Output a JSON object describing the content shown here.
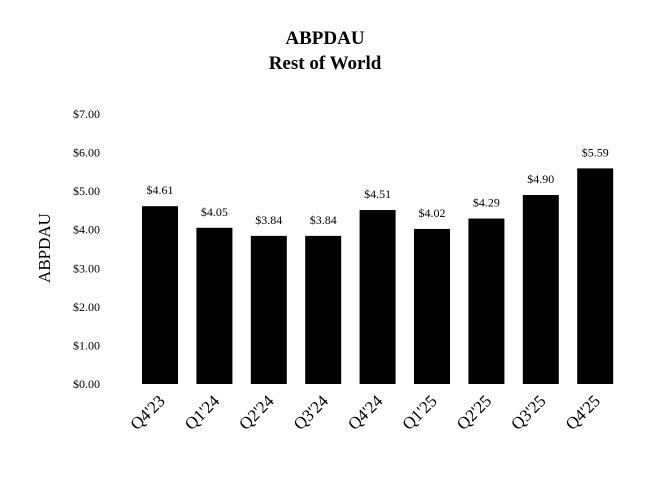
{
  "chart_data": {
    "type": "bar",
    "title": "ABPDAU",
    "subtitle": "Rest of World",
    "xlabel": "",
    "ylabel": "ABPDAU",
    "ylim": [
      0,
      7
    ],
    "yticks": [
      "$0.00",
      "$1.00",
      "$2.00",
      "$3.00",
      "$4.00",
      "$5.00",
      "$6.00",
      "$7.00"
    ],
    "ytick_values": [
      0,
      1,
      2,
      3,
      4,
      5,
      6,
      7
    ],
    "categories": [
      "Q4'23",
      "Q1'24",
      "Q2'24",
      "Q3'24",
      "Q4'24",
      "Q1'25",
      "Q2'25",
      "Q3'25",
      "Q4'25"
    ],
    "values": [
      4.61,
      4.05,
      3.84,
      3.84,
      4.51,
      4.02,
      4.29,
      4.9,
      5.59
    ],
    "value_labels": [
      "$4.61",
      "$4.05",
      "$3.84",
      "$3.84",
      "$4.51",
      "$4.02",
      "$4.29",
      "$4.90",
      "$5.59"
    ],
    "grid": false,
    "bar_color": "#000000"
  }
}
